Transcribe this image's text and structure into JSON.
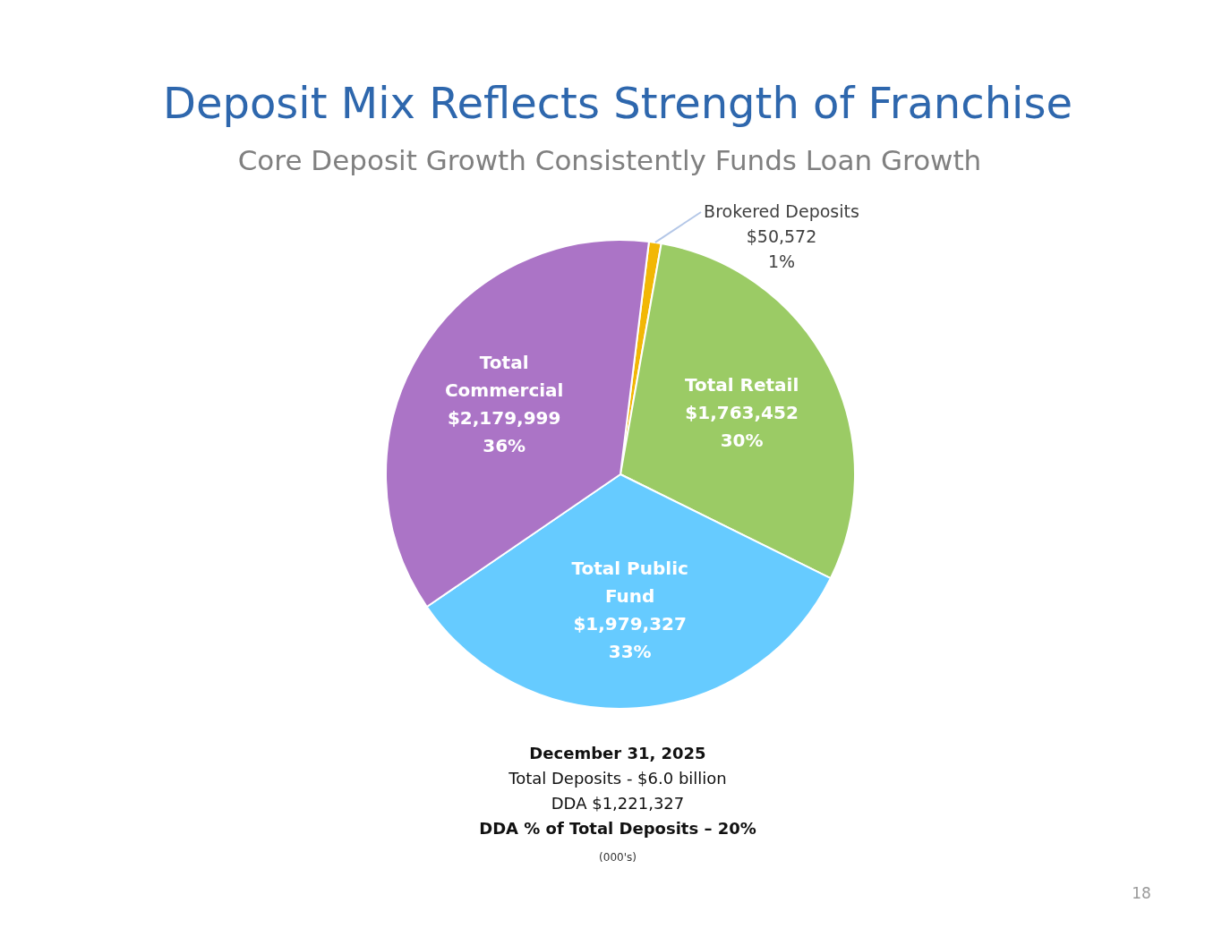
{
  "chart_data": {
    "type": "pie",
    "title": "Deposit Mix Reflects Strength of Franchise",
    "subtitle": "Core Deposit Growth Consistently Funds Loan Growth",
    "categories": [
      "Brokered Deposits",
      "Total Retail",
      "Total Public Fund",
      "Total Commercial"
    ],
    "values": [
      50572,
      1763452,
      1979327,
      2179999
    ],
    "colors": [
      "#f2b705",
      "#9bcb65",
      "#66cbff",
      "#ab74c6"
    ],
    "value_labels": [
      "$50,572\n1%",
      "$1,763,452\n30%",
      "$1,979,327\n33%",
      "$2,179,999\n36%"
    ],
    "annotations": [
      "December 31, 2025",
      "Total Deposits - $6.0 billion",
      "DDA $1,221,327",
      "DDA % of Total Deposits – 20%",
      "(000's)",
      "18"
    ]
  }
}
